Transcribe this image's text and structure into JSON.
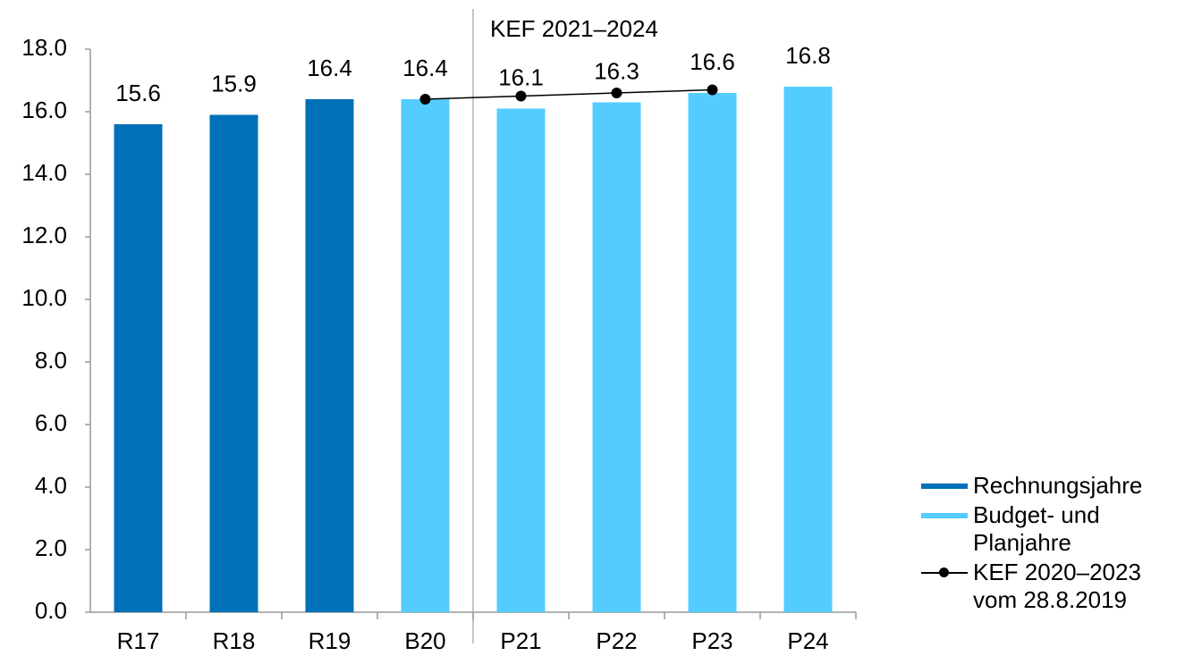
{
  "chart_data": {
    "type": "bar",
    "annotation": "KEF 2021–2024",
    "categories": [
      "R17",
      "R18",
      "R19",
      "B20",
      "P21",
      "P22",
      "P23",
      "P24"
    ],
    "series": [
      {
        "name": "Rechnungsjahre",
        "color": "#0070b8",
        "type": "bar",
        "values": [
          15.6,
          15.9,
          16.4,
          null,
          null,
          null,
          null,
          null
        ]
      },
      {
        "name": "Budget- und Planjahre",
        "color": "#55ccff",
        "type": "bar",
        "values": [
          null,
          null,
          null,
          16.4,
          16.1,
          16.3,
          16.6,
          16.8
        ]
      },
      {
        "name": "KEF 2020–2023 vom 28.8.2019",
        "color": "#000000",
        "type": "line",
        "values": [
          null,
          null,
          null,
          16.4,
          16.5,
          16.6,
          16.7,
          null
        ]
      }
    ],
    "ylim": [
      0,
      18
    ],
    "yticks": [
      {
        "value": 0,
        "label": "0.0"
      },
      {
        "value": 2,
        "label": "2.0"
      },
      {
        "value": 4,
        "label": "4.0"
      },
      {
        "value": 6,
        "label": "6.0"
      },
      {
        "value": 8,
        "label": "8.0"
      },
      {
        "value": 10,
        "label": "10.0"
      },
      {
        "value": 12,
        "label": "12.0"
      },
      {
        "value": 14,
        "label": "14.0"
      },
      {
        "value": 16,
        "label": "16.0"
      },
      {
        "value": 18,
        "label": "18.0"
      }
    ],
    "grid": false,
    "legend": "right"
  }
}
